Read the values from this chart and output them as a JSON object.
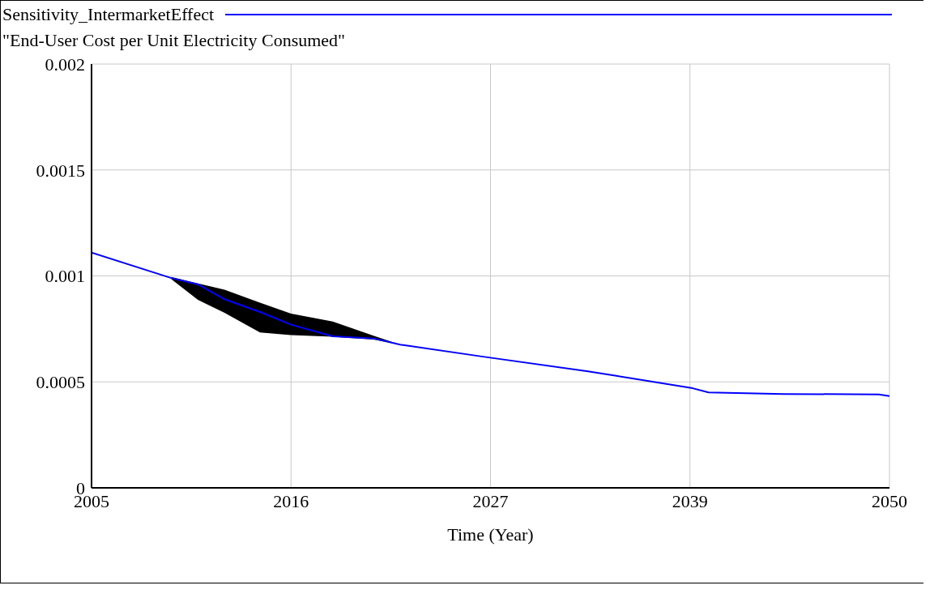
{
  "chart_data": {
    "type": "line",
    "title": "\"End-User Cost per Unit Electricity Consumed\"",
    "xlabel": "Time (Year)",
    "x": [
      2005,
      2009.5,
      2011,
      2012.5,
      2014.5,
      2016.25,
      2018.6,
      2020.9,
      2022.4,
      2027,
      2033,
      2038.9,
      2039.8,
      2044,
      2049.4,
      2050
    ],
    "series": [
      {
        "name": "Sensitivity_IntermarketEffect",
        "color": "#0000ff",
        "values": [
          0.00111,
          0.00099,
          0.00096,
          0.00089,
          0.00083,
          0.00077,
          0.000715,
          0.000705,
          0.000676,
          0.00062,
          0.00055,
          0.00047,
          0.00045,
          0.000443,
          0.000441,
          0.000433
        ],
        "lower": [
          null,
          0.000985,
          0.000887,
          0.000826,
          0.000733,
          0.000721,
          0.000713,
          0.0007,
          0.000676,
          null,
          null,
          null,
          null,
          null,
          null,
          null
        ],
        "upper": [
          null,
          0.000995,
          0.000965,
          0.000935,
          0.000874,
          0.000822,
          0.000785,
          0.000718,
          0.000676,
          null,
          null,
          null,
          null,
          null,
          null,
          null
        ]
      }
    ],
    "xlim": [
      2005,
      2050
    ],
    "xticks": [
      2005,
      {
        "value": 2016.25,
        "label": "2016"
      },
      {
        "value": 2027.5,
        "label": "2027"
      },
      {
        "value": 2038.75,
        "label": "2039"
      },
      2050
    ],
    "ylim": [
      0,
      0.002
    ],
    "yticks": [
      0,
      0.0005,
      0.001,
      0.0015,
      0.002
    ],
    "grid": true,
    "legend": "top",
    "marker": "none",
    "line_style": "solid"
  }
}
